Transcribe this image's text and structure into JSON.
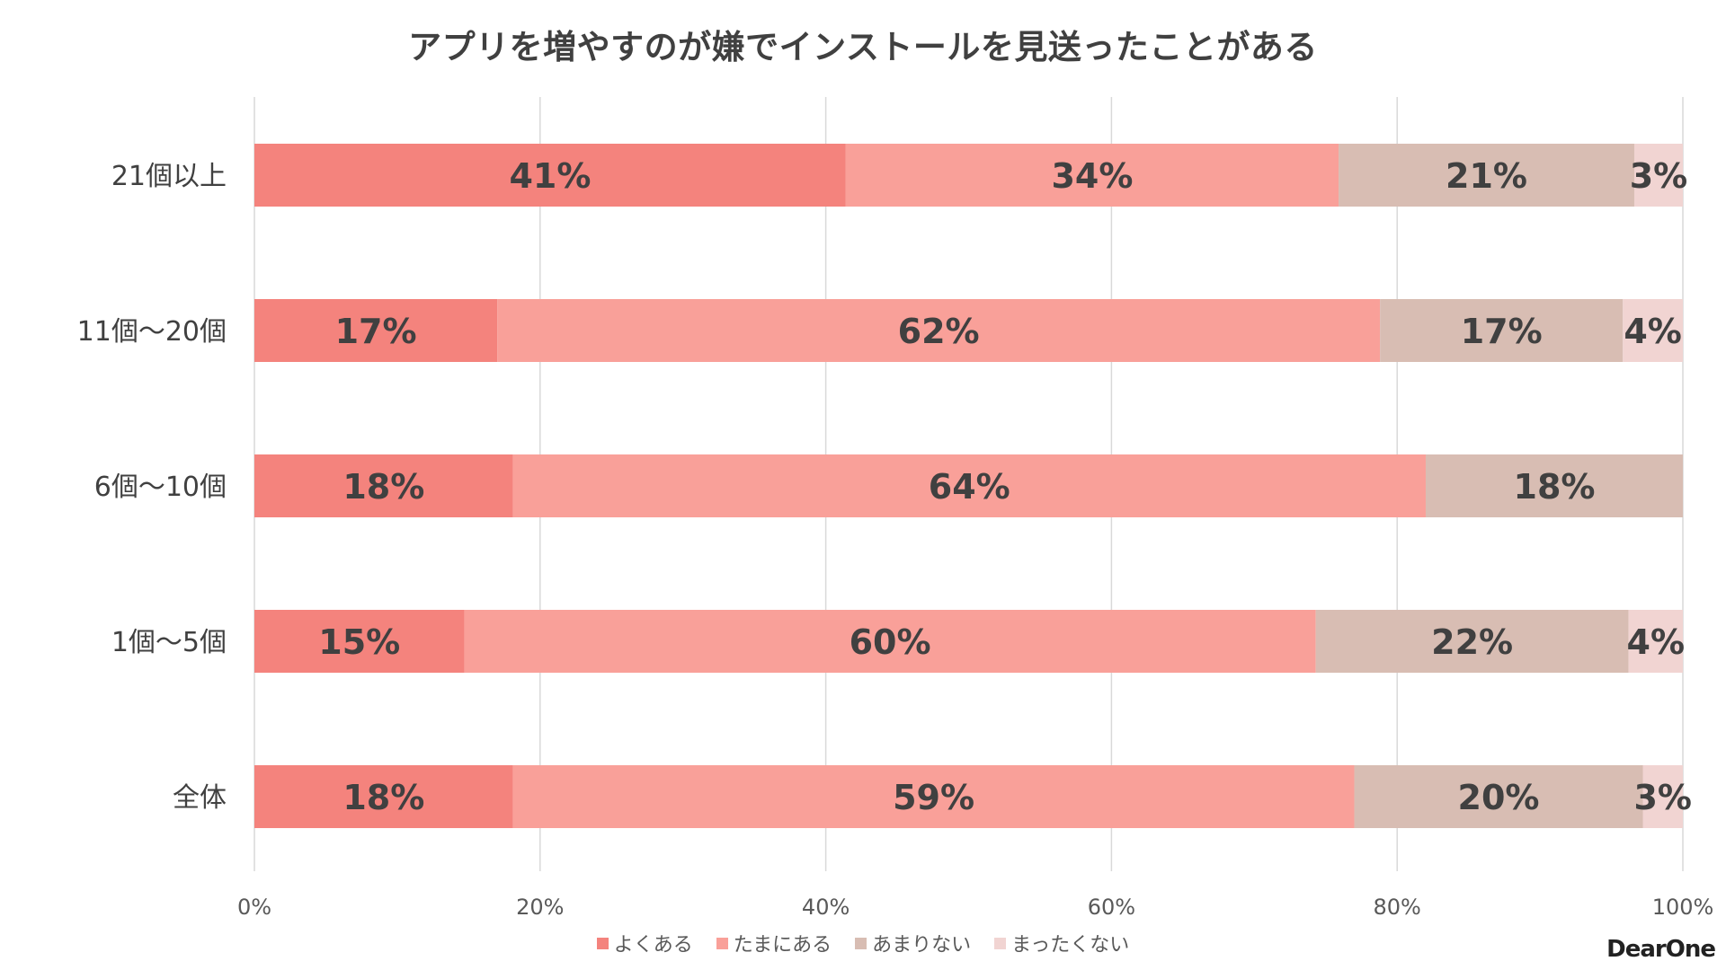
{
  "chart_data": {
    "type": "bar",
    "orientation": "horizontal",
    "stacked": "percent",
    "title": "アプリを増やすのが嫌でインストールを見送ったことがある",
    "categories": [
      "21個以上",
      "11個～20個",
      "6個～10個",
      "1個～5個",
      "全体"
    ],
    "series": [
      {
        "name": "よくある",
        "color": "#F4837D",
        "values": [
          41.4,
          17.0,
          18.1,
          14.7,
          18.1
        ],
        "labels": [
          "41%",
          "17%",
          "18%",
          "15%",
          "18%"
        ]
      },
      {
        "name": "たまにある",
        "color": "#F9A099",
        "values": [
          34.5,
          61.8,
          63.9,
          59.6,
          58.9
        ],
        "labels": [
          "34%",
          "62%",
          "64%",
          "60%",
          "59%"
        ]
      },
      {
        "name": "あまりない",
        "color": "#D8BDB3",
        "values": [
          20.7,
          17.0,
          18.0,
          21.9,
          20.2
        ],
        "labels": [
          "21%",
          "17%",
          "18%",
          "22%",
          "20%"
        ]
      },
      {
        "name": "まったくない",
        "color": "#F1D4D2",
        "values": [
          3.4,
          4.2,
          0,
          3.8,
          2.8
        ],
        "labels": [
          "3%",
          "4%",
          "",
          "4%",
          "3%"
        ]
      }
    ],
    "xlim": [
      0,
      100
    ],
    "xticks": [
      "0%",
      "20%",
      "40%",
      "60%",
      "80%",
      "100%"
    ],
    "grid": true,
    "legend": "bottom"
  },
  "brand": "DearOne"
}
